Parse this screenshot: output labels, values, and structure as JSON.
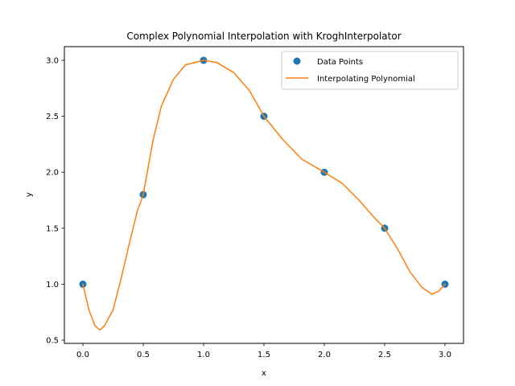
{
  "chart_data": {
    "type": "line",
    "title": "Complex Polynomial Interpolation with KroghInterpolator",
    "xlabel": "x",
    "ylabel": "y",
    "xlim": [
      -0.15,
      3.15
    ],
    "ylim": [
      0.47,
      3.12
    ],
    "xticks": [
      "0.0",
      "0.5",
      "1.0",
      "1.5",
      "2.0",
      "2.5",
      "3.0"
    ],
    "yticks": [
      "0.5",
      "1.0",
      "1.5",
      "2.0",
      "2.5",
      "3.0"
    ],
    "grid": false,
    "legend_position": "upper right",
    "series": [
      {
        "name": "Data Points",
        "type": "scatter",
        "color": "#1f77b4",
        "x": [
          0.0,
          0.5,
          1.0,
          1.5,
          2.0,
          2.5,
          3.0
        ],
        "y": [
          1.0,
          1.8,
          3.0,
          2.5,
          2.0,
          1.5,
          1.0
        ]
      },
      {
        "name": "Interpolating Polynomial",
        "type": "line",
        "color": "#ff7f0e",
        "x": [
          0.0,
          0.05,
          0.1,
          0.14,
          0.18,
          0.25,
          0.31,
          0.38,
          0.45,
          0.5,
          0.58,
          0.65,
          0.75,
          0.85,
          1.0,
          1.11,
          1.25,
          1.38,
          1.5,
          1.65,
          1.81,
          2.0,
          2.15,
          2.28,
          2.41,
          2.5,
          2.61,
          2.71,
          2.81,
          2.89,
          2.95,
          3.0
        ],
        "y": [
          1.0,
          0.77,
          0.63,
          0.59,
          0.63,
          0.77,
          1.02,
          1.34,
          1.65,
          1.8,
          2.28,
          2.59,
          2.83,
          2.96,
          3.0,
          2.98,
          2.89,
          2.73,
          2.5,
          2.3,
          2.12,
          2.0,
          1.9,
          1.76,
          1.6,
          1.5,
          1.31,
          1.11,
          0.97,
          0.91,
          0.94,
          1.0
        ]
      }
    ]
  },
  "legend": {
    "items": [
      {
        "label": "Data Points"
      },
      {
        "label": "Interpolating Polynomial"
      }
    ]
  }
}
